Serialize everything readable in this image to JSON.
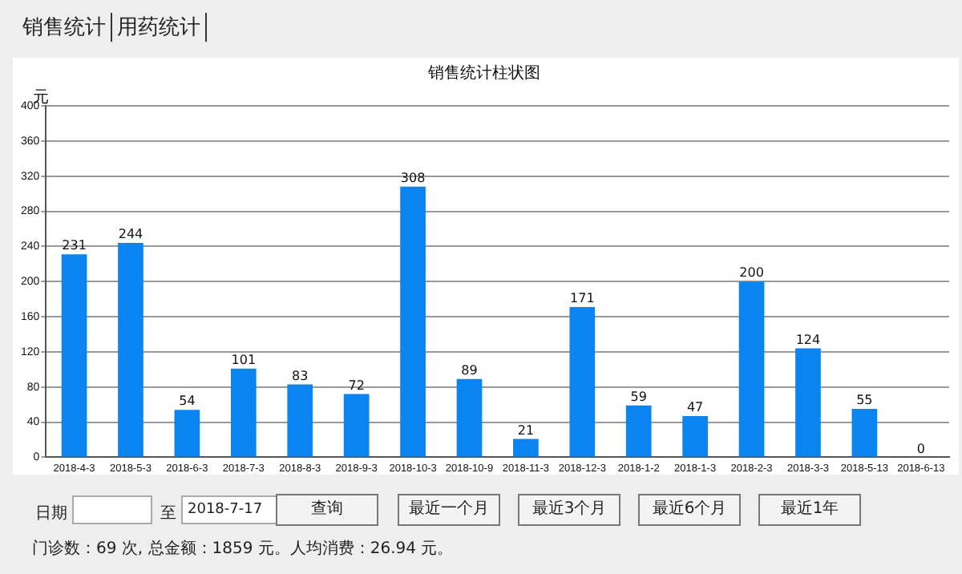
{
  "chart_data": {
    "type": "bar",
    "title": "销售统计柱状图",
    "ylabel": "元",
    "categories": [
      "2018-4-3",
      "2018-5-3",
      "2018-6-3",
      "2018-7-3",
      "2018-8-3",
      "2018-9-3",
      "2018-10-3",
      "2018-10-9",
      "2018-11-3",
      "2018-12-3",
      "2018-1-2",
      "2018-1-3",
      "2018-2-3",
      "2018-3-3",
      "2018-5-13",
      "2018-6-13"
    ],
    "values": [
      231,
      244,
      54,
      101,
      83,
      72,
      308,
      89,
      21,
      171,
      59,
      47,
      200,
      124,
      55,
      0
    ],
    "color": "#0a84f0",
    "ylim": [
      0,
      400
    ],
    "yticks": [
      0,
      40,
      80,
      120,
      160,
      200,
      240,
      280,
      320,
      360,
      400
    ],
    "grid": "y",
    "data_labels": true,
    "annotations": [
      "销售统计",
      "用药统计",
      "日期",
      "至",
      "2018-7-17",
      "查询",
      "最近一个月",
      "最近3个月",
      "最近6个月",
      "最近1年",
      "门诊数：69 次, 总金额：1859 元。人均消费：26.94 元。"
    ]
  }
}
